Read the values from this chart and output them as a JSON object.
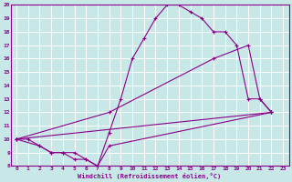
{
  "xlabel": "Windchill (Refroidissement éolien,°C)",
  "xlim": [
    -0.5,
    23.5
  ],
  "ylim": [
    8,
    20
  ],
  "xticks": [
    0,
    1,
    2,
    3,
    4,
    5,
    6,
    7,
    8,
    9,
    10,
    11,
    12,
    13,
    14,
    15,
    16,
    17,
    18,
    19,
    20,
    21,
    22,
    23
  ],
  "yticks": [
    8,
    9,
    10,
    11,
    12,
    13,
    14,
    15,
    16,
    17,
    18,
    19,
    20
  ],
  "bg_color": "#c8e8e8",
  "line_color": "#880088",
  "grid_color": "#ffffff",
  "lines": [
    {
      "x": [
        0,
        1,
        2,
        3,
        4,
        5,
        6,
        7,
        8,
        9,
        10,
        11,
        12,
        13,
        14,
        15,
        16,
        17,
        18,
        19,
        20,
        21,
        22
      ],
      "y": [
        10,
        10,
        9.5,
        9,
        9,
        9,
        8.5,
        8,
        10.5,
        13,
        16,
        17.5,
        19,
        20,
        20,
        19.5,
        19,
        18,
        18,
        17,
        13,
        13,
        12
      ]
    },
    {
      "x": [
        0,
        2,
        3,
        4,
        5,
        6,
        7,
        8,
        22
      ],
      "y": [
        10,
        9.5,
        9,
        9,
        8.5,
        8.5,
        8,
        9.5,
        12
      ]
    },
    {
      "x": [
        0,
        22
      ],
      "y": [
        10,
        12
      ]
    },
    {
      "comment": "moderate rise line: 0,10 -> 8,12 -> 17,16 -> 20,17 -> 21,13 -> 22,12",
      "x": [
        0,
        8,
        17,
        20,
        21,
        22
      ],
      "y": [
        10,
        12,
        16,
        17,
        13,
        12
      ]
    }
  ]
}
